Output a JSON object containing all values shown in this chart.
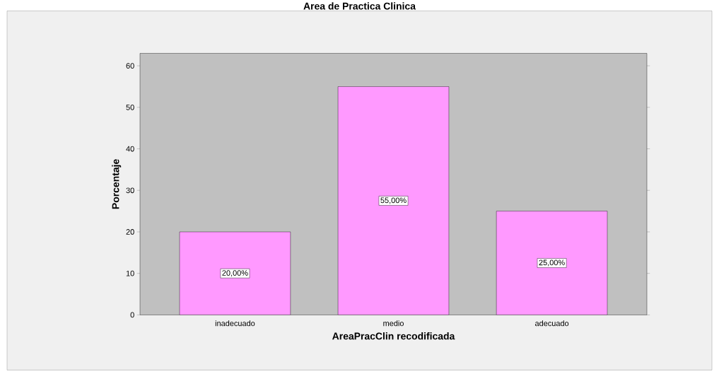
{
  "chart_data": {
    "type": "bar",
    "title": "Area de Practica Clinica",
    "xlabel": "AreaPracClin recodificada",
    "ylabel": "Porcentaje",
    "categories": [
      "inadecuado",
      "medio",
      "adecuado"
    ],
    "values": [
      20,
      55,
      25
    ],
    "color": "#ff99ff",
    "value_labels": [
      "20,00%",
      "55,00%",
      "25,00%"
    ],
    "ylim": [
      0,
      63
    ],
    "yticks": [
      0,
      10,
      20,
      30,
      40,
      50,
      60
    ],
    "grid": false
  }
}
